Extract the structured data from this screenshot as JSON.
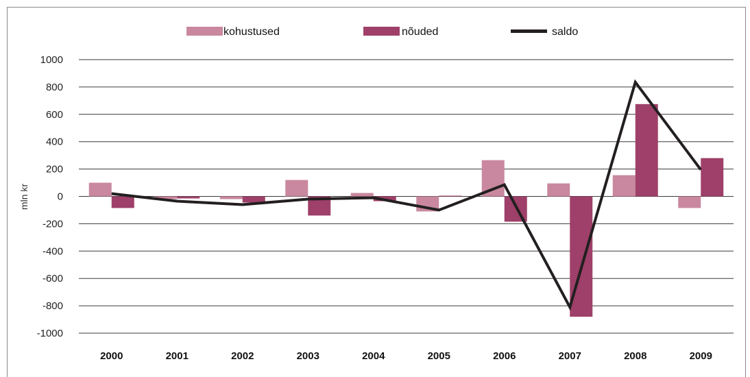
{
  "chart_data": {
    "type": "bar",
    "categories": [
      "2000",
      "2001",
      "2002",
      "2003",
      "2004",
      "2005",
      "2006",
      "2007",
      "2008",
      "2009"
    ],
    "series": [
      {
        "name": "kohustused",
        "kind": "bar",
        "color": "#c9889f",
        "values": [
          100,
          -20,
          -20,
          120,
          25,
          -110,
          265,
          95,
          155,
          -85
        ]
      },
      {
        "name": "nõuded",
        "kind": "bar",
        "color": "#9e4069",
        "values": [
          -85,
          -15,
          -45,
          -140,
          -35,
          5,
          -185,
          -880,
          675,
          280
        ]
      },
      {
        "name": "saldo",
        "kind": "line",
        "color": "#231f20",
        "values": [
          20,
          -35,
          -60,
          -20,
          -10,
          -100,
          85,
          -810,
          835,
          195
        ]
      }
    ],
    "ylabel": "mln kr",
    "xlabel": "",
    "ylim": [
      -1000,
      1000
    ],
    "yticks": [
      1000,
      800,
      600,
      400,
      200,
      0,
      -200,
      -400,
      -600,
      -800,
      -1000
    ],
    "grid": true,
    "legend_position": "top"
  }
}
